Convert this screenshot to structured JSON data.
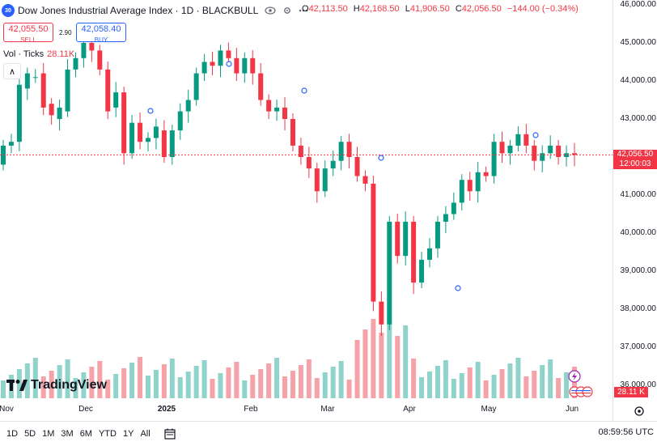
{
  "symbol": {
    "badge": "30",
    "title": "Dow Jones Industrial Average Index · 1D · BLACKBULL"
  },
  "ohlc": {
    "o_key": "O",
    "o": "42,113.50",
    "h_key": "H",
    "h": "42,168.50",
    "l_key": "L",
    "l": "41,906.50",
    "c_key": "C",
    "c": "42,056.50",
    "change": "−144.00 (−0.34%)"
  },
  "trade": {
    "sell_price": "42,055.50",
    "sell_label": "SELL",
    "spread": "2.90",
    "buy_price": "42,058.40",
    "buy_label": "BUY"
  },
  "volume": {
    "label": "Vol · Ticks",
    "value": "28.11K",
    "tag": "28.11 K"
  },
  "collapse_glyph": "∧",
  "y_axis_labels": [
    "46,000.00",
    "45,000.00",
    "44,000.00",
    "43,000.00",
    "42,000.00",
    "41,000.00",
    "40,000.00",
    "39,000.00",
    "38,000.00",
    "37,000.00",
    "36,000.00"
  ],
  "last_price": {
    "price": "42,056.50",
    "countdown": "12:00:03"
  },
  "x_axis_labels": [
    {
      "text": "Nov",
      "bold": false
    },
    {
      "text": "Dec",
      "bold": false
    },
    {
      "text": "2025",
      "bold": true
    },
    {
      "text": "Feb",
      "bold": false
    },
    {
      "text": "Mar",
      "bold": false
    },
    {
      "text": "Apr",
      "bold": false
    },
    {
      "text": "May",
      "bold": false
    },
    {
      "text": "Jun",
      "bold": false
    }
  ],
  "ranges": [
    "1D",
    "5D",
    "1M",
    "3M",
    "6M",
    "YTD",
    "1Y",
    "All"
  ],
  "clock": "08:59:56 UTC",
  "logo_text": "TradingView",
  "icons": {
    "settings": "gear-icon",
    "calendar": "calendar-range-icon",
    "eye": "eye-icon",
    "gear": "gear-icon",
    "more": "more-icon",
    "lightning": "lightning-icon",
    "flags": "country-flag-icons"
  },
  "colors": {
    "up": "#089981",
    "down": "#f23645",
    "up_vol": "#8fd3cb",
    "down_vol": "#f5a3a8",
    "accent": "#2962ff"
  },
  "chart_data": {
    "type": "candlestick",
    "ylim": [
      36000,
      46000
    ],
    "x_ticks": [
      "Nov",
      "Dec",
      "2025",
      "Feb",
      "Mar",
      "Apr",
      "May",
      "Jun"
    ],
    "last_price": 42056.5,
    "candles_approx": [
      [
        41800,
        42300
      ],
      [
        42300,
        42400
      ],
      [
        42400,
        43900
      ],
      [
        43800,
        44200
      ],
      [
        44100,
        44100
      ],
      [
        44200,
        43300
      ],
      [
        43400,
        43100
      ],
      [
        43000,
        43300
      ],
      [
        43200,
        44300
      ],
      [
        44300,
        44600
      ],
      [
        44600,
        45000
      ],
      [
        45000,
        44800
      ],
      [
        44800,
        44300
      ],
      [
        44300,
        43200
      ],
      [
        43300,
        43700
      ],
      [
        43700,
        42100
      ],
      [
        42100,
        42900
      ],
      [
        42900,
        42400
      ],
      [
        42400,
        42500
      ],
      [
        42500,
        42800
      ],
      [
        42700,
        42000
      ],
      [
        42000,
        42700
      ],
      [
        42700,
        43200
      ],
      [
        43200,
        43500
      ],
      [
        43500,
        44200
      ],
      [
        44200,
        44500
      ],
      [
        44500,
        44400
      ],
      [
        44400,
        44800
      ],
      [
        44800,
        44600
      ],
      [
        44600,
        44200
      ],
      [
        44200,
        44600
      ],
      [
        44600,
        44200
      ],
      [
        44200,
        43500
      ],
      [
        43500,
        43200
      ],
      [
        43200,
        43300
      ],
      [
        43300,
        43000
      ],
      [
        43000,
        42300
      ],
      [
        42300,
        42000
      ],
      [
        42000,
        41700
      ],
      [
        41700,
        41100
      ],
      [
        41100,
        41700
      ],
      [
        41700,
        41900
      ],
      [
        41900,
        42400
      ],
      [
        42400,
        42000
      ],
      [
        42000,
        41500
      ],
      [
        41500,
        41300
      ],
      [
        41300,
        38200
      ],
      [
        38200,
        37600
      ],
      [
        37600,
        40300
      ],
      [
        40300,
        39400
      ],
      [
        39400,
        40300
      ],
      [
        40300,
        38700
      ],
      [
        38700,
        39300
      ],
      [
        39300,
        39600
      ],
      [
        39600,
        40300
      ],
      [
        40300,
        40500
      ],
      [
        40500,
        40800
      ],
      [
        40800,
        41400
      ],
      [
        41400,
        41100
      ],
      [
        41100,
        41600
      ],
      [
        41600,
        41500
      ],
      [
        41500,
        42400
      ],
      [
        42400,
        42100
      ],
      [
        42100,
        42300
      ],
      [
        42300,
        42600
      ],
      [
        42600,
        42300
      ],
      [
        42300,
        41900
      ],
      [
        41900,
        42100
      ],
      [
        42100,
        42300
      ],
      [
        42300,
        42000
      ],
      [
        42000,
        42100
      ],
      [
        42100,
        42056
      ]
    ]
  }
}
